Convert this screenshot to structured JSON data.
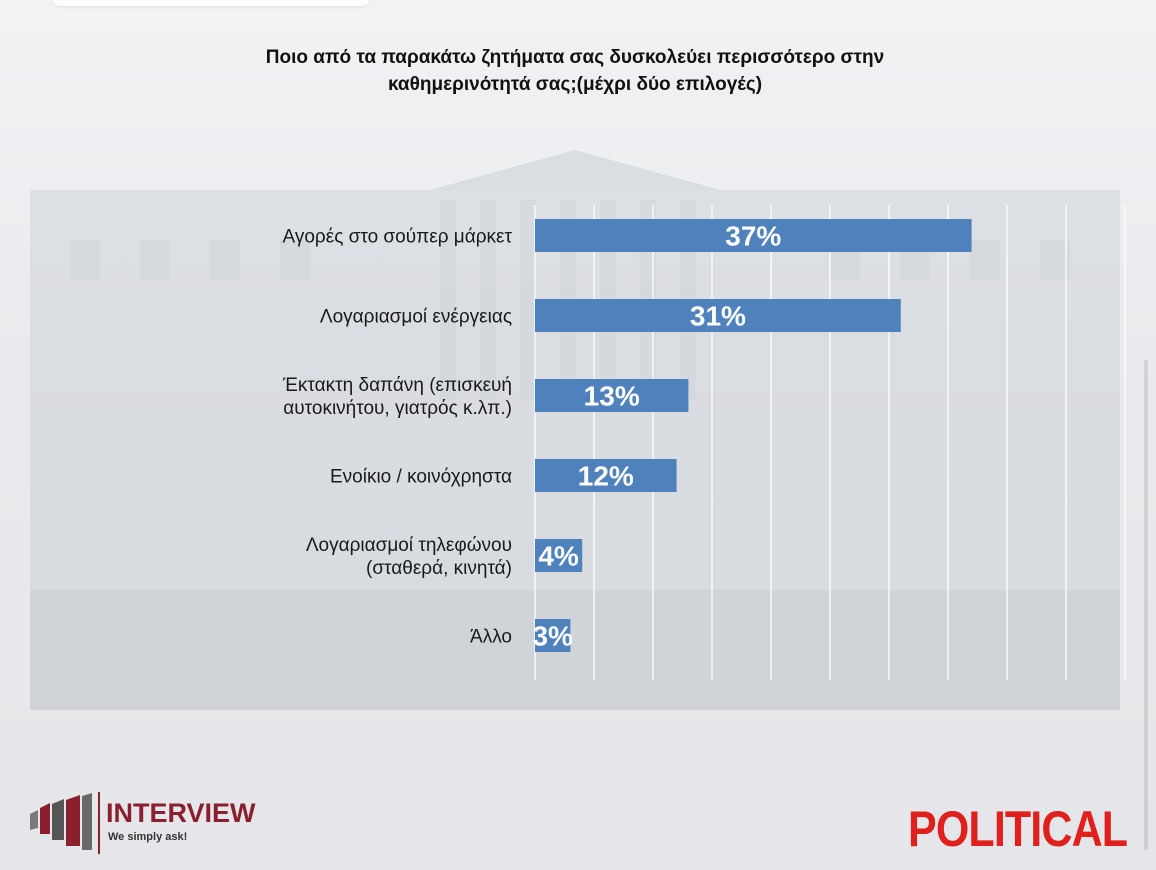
{
  "title": "Ποιο από τα παρακάτω ζητήματα σας δυσκολεύει περισσότερο στην καθημερινότητά σας;(μέχρι δύο επιλογές)",
  "chart_data": {
    "type": "bar",
    "orientation": "horizontal",
    "categories": [
      [
        "Αγορές στο σούπερ μάρκετ"
      ],
      [
        "Λογαριασμοί ενέργειας"
      ],
      [
        "Έκτακτη δαπάνη (επισκευή",
        "αυτοκινήτου, γιατρός κ.λπ.)"
      ],
      [
        "Ενοίκιο / κοινόχρηστα"
      ],
      [
        "Λογαριασμοί τηλεφώνου",
        "(σταθερά, κινητά)"
      ],
      [
        "Άλλο"
      ]
    ],
    "values": [
      37,
      31,
      13,
      12,
      4,
      3
    ],
    "value_labels": [
      "37%",
      "31%",
      "13%",
      "12%",
      "4%",
      "3%"
    ],
    "unit": "%",
    "xlim": [
      0,
      50
    ],
    "grid": true,
    "bar_color": "#4f81bd"
  },
  "logos": {
    "interview_name": "INTERVIEW",
    "interview_tagline": "We simply ask!",
    "political": "POLITICAL"
  },
  "colors": {
    "interview_red": "#8b1f2d",
    "political_red": "#e0201c"
  }
}
